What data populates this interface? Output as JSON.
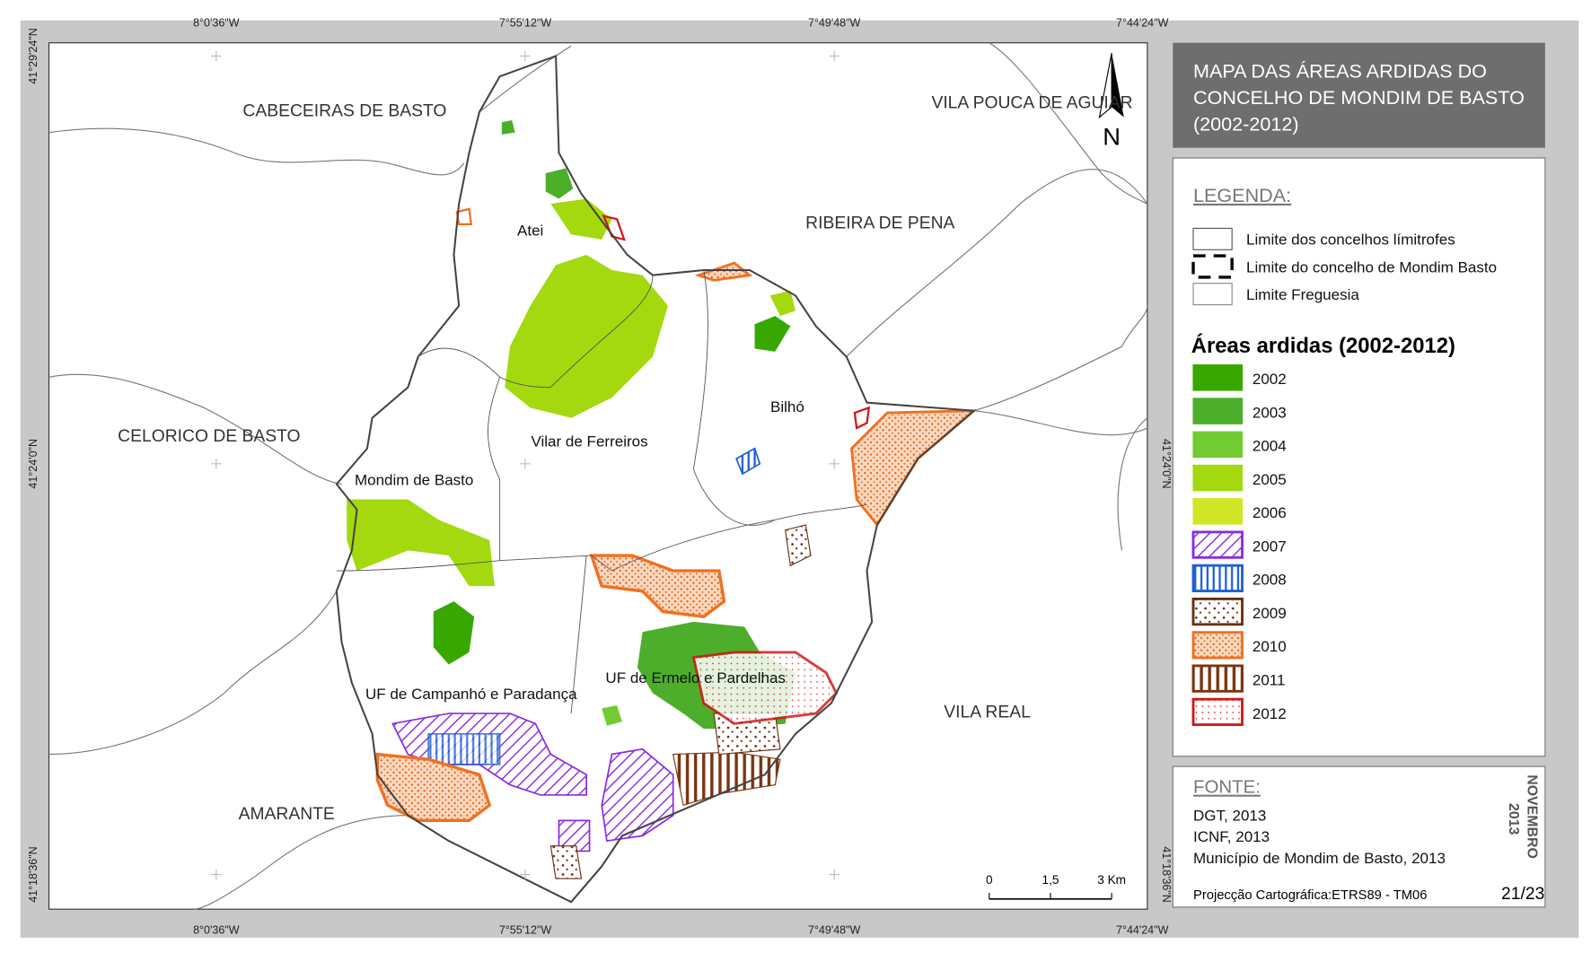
{
  "title": [
    "MAPA DAS ÁREAS ARDIDAS DO",
    "CONCELHO DE MONDIM DE BASTO",
    "(2002-2012)"
  ],
  "graticule": {
    "top": [
      "8°0'36\"W",
      "7°55'12\"W",
      "7°49'48\"W",
      "7°44'24\"W"
    ],
    "bottom": [
      "8°0'36\"W",
      "7°55'12\"W",
      "7°49'48\"W",
      "7°44'24\"W"
    ],
    "left": [
      "41°29'24\"N",
      "41°24'0\"N",
      "41°18'36\"N"
    ],
    "right": [
      "41°24'0\"N",
      "41°18'36\"N"
    ]
  },
  "places": {
    "neighbours": [
      "CABECEIRAS DE BASTO",
      "VILA POUCA DE AGUIAR",
      "RIBEIRA DE PENA",
      "CELORICO DE BASTO",
      "VILA REAL",
      "AMARANTE"
    ],
    "parishes": [
      "Atei",
      "Bilhó",
      "Vilar de Ferreiros",
      "Mondim de Basto",
      "UF de Campanhó e Paradança",
      "UF de Ermelo e Pardelhas"
    ]
  },
  "north": "N",
  "scale_bar": {
    "ticks": [
      0,
      {
        "value": 1.5,
        "label": "1,5"
      },
      {
        "value": 3,
        "label": "3 Km"
      }
    ]
  },
  "legend": {
    "heading": "LEGENDA:",
    "boundaries": [
      "Limite dos concelhos límitrofes",
      "Limite do concelho de Mondim Basto",
      "Limite Freguesia"
    ],
    "burned_title": "Áreas ardidas (2002-2012)",
    "years": [
      {
        "label": "2002",
        "color": "#38a800",
        "pattern": "solid"
      },
      {
        "label": "2003",
        "color": "#4cae2a",
        "pattern": "solid"
      },
      {
        "label": "2004",
        "color": "#70cc32",
        "pattern": "solid"
      },
      {
        "label": "2005",
        "color": "#a3d90e",
        "pattern": "solid"
      },
      {
        "label": "2006",
        "color": "#d2e628",
        "pattern": "solid"
      },
      {
        "label": "2007",
        "color": "#8a2be2",
        "pattern": "hatch"
      },
      {
        "label": "2008",
        "color": "#1e5fd6",
        "pattern": "vertical"
      },
      {
        "label": "2009",
        "color": "#6b2d0f",
        "pattern": "dots"
      },
      {
        "label": "2010",
        "color": "#f07020",
        "pattern": "dense"
      },
      {
        "label": "2011",
        "color": "#7a3410",
        "pattern": "stripes"
      },
      {
        "label": "2012",
        "color": "#d01818",
        "pattern": "fine"
      }
    ]
  },
  "source": {
    "heading": "FONTE:",
    "lines": [
      "DGT, 2013",
      "ICNF, 2013",
      "Município de Mondim de Basto, 2013"
    ],
    "projection": "Projecção Cartográfica:ETRS89 - TM06",
    "date": [
      "NOVEMBRO",
      "2013"
    ],
    "page": "21/23"
  }
}
